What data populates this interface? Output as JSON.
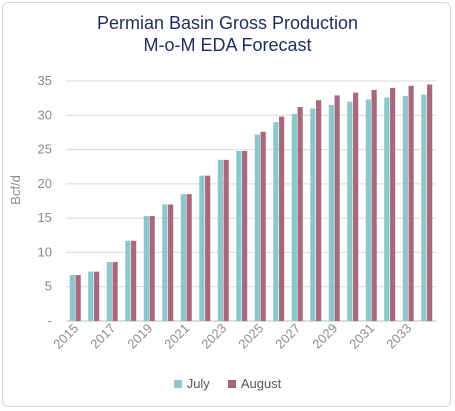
{
  "chart_data": {
    "type": "bar",
    "title": "Permian Basin Gross Production",
    "subtitle": "M-o-M EDA Forecast",
    "xlabel": "",
    "ylabel": "Bcf/d",
    "ylim": [
      0,
      35
    ],
    "yticks": [
      "-",
      "5",
      "10",
      "15",
      "20",
      "25",
      "30",
      "35"
    ],
    "categories": [
      "2015",
      "2016",
      "2017",
      "2018",
      "2019",
      "2020",
      "2021",
      "2022",
      "2023",
      "2024",
      "2025",
      "2026",
      "2027",
      "2028",
      "2029",
      "2030",
      "2031",
      "2032",
      "2033",
      "2034"
    ],
    "xtick_labels": [
      "2015",
      "",
      "2017",
      "",
      "2019",
      "",
      "2021",
      "",
      "2023",
      "",
      "2025",
      "",
      "2027",
      "",
      "2029",
      "",
      "2031",
      "",
      "2033",
      ""
    ],
    "series": [
      {
        "name": "July",
        "color": "#8cc7c9",
        "values": [
          6.7,
          7.2,
          8.6,
          11.7,
          15.3,
          17.0,
          18.5,
          21.2,
          23.5,
          24.8,
          27.2,
          29.0,
          30.2,
          31.0,
          31.5,
          32.0,
          32.3,
          32.6,
          32.8,
          33.0
        ]
      },
      {
        "name": "August",
        "color": "#a8687e",
        "values": [
          6.7,
          7.2,
          8.6,
          11.7,
          15.3,
          17.0,
          18.5,
          21.2,
          23.5,
          24.8,
          27.6,
          29.8,
          31.2,
          32.2,
          32.9,
          33.3,
          33.7,
          34.0,
          34.3,
          34.5
        ]
      }
    ],
    "grid": true,
    "legend": "bottom"
  }
}
